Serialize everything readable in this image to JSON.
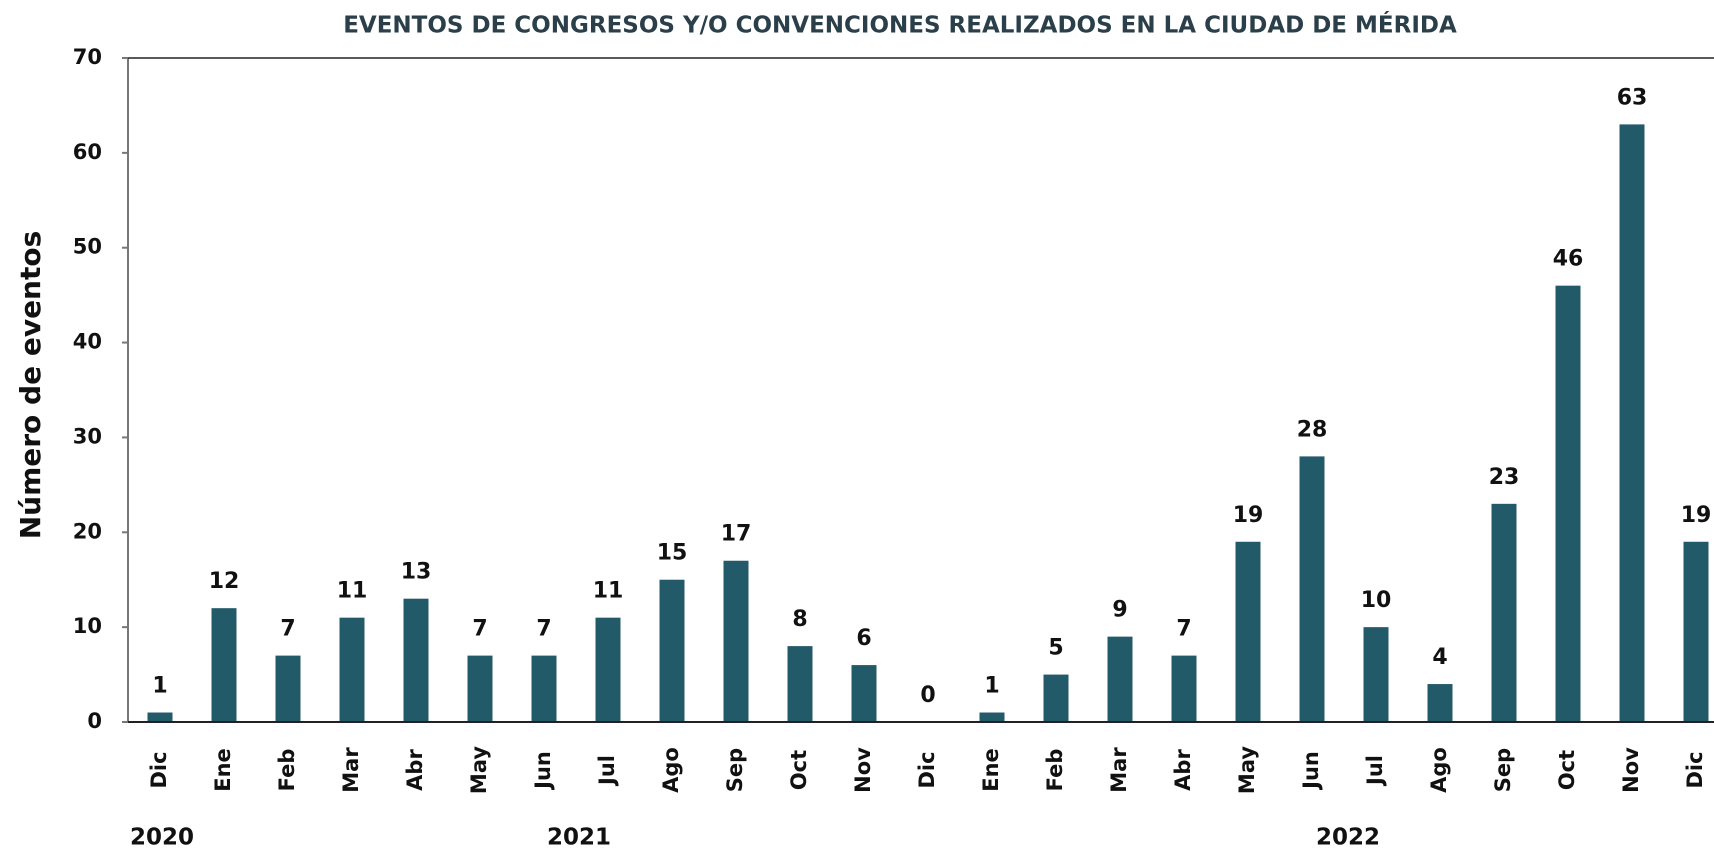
{
  "chart_data": {
    "type": "bar",
    "title": "EVENTOS DE CONGRESOS Y/O CONVENCIONES REALIZADOS EN LA CIUDAD DE MÉRIDA",
    "y_label": "Número de eventos",
    "categories": [
      "Dic",
      "Ene",
      "Feb",
      "Mar",
      "Abr",
      "May",
      "Jun",
      "Jul",
      "Ago",
      "Sep",
      "Oct",
      "Nov",
      "Dic",
      "Ene",
      "Feb",
      "Mar",
      "Abr",
      "May",
      "Jun",
      "Jul",
      "Ago",
      "Sep",
      "Oct",
      "Nov",
      "Dic"
    ],
    "values": [
      1,
      12,
      7,
      11,
      13,
      7,
      7,
      11,
      15,
      17,
      8,
      6,
      0,
      1,
      5,
      9,
      7,
      19,
      28,
      10,
      4,
      23,
      46,
      63,
      19
    ],
    "year_labels": [
      "2020",
      "2021",
      "2022"
    ],
    "color": "#235a6a",
    "ylim": [
      0,
      70
    ],
    "yticks": [
      0,
      10,
      20,
      30,
      40,
      50,
      60,
      70
    ],
    "grid": false
  }
}
